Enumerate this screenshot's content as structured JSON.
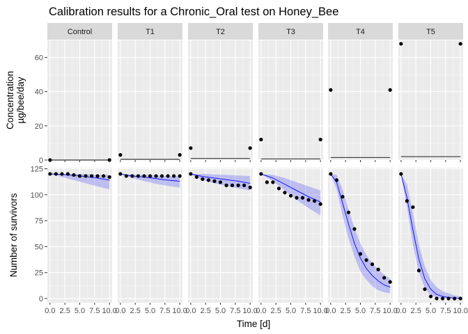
{
  "chart_data": {
    "type": "line",
    "title": "Calibration results for a Chronic_Oral test on Honey_Bee",
    "xlabel": "Time [d]",
    "x_ticks": [
      "0.0",
      "2.5",
      "5.0",
      "7.5",
      "10.0"
    ],
    "xlim": [
      0,
      10
    ],
    "grid": true,
    "facets": [
      "Control",
      "T1",
      "T2",
      "T3",
      "T4",
      "T5"
    ],
    "rows": [
      {
        "ylabel_lines": [
          "Concentration",
          "µg/bee/day"
        ],
        "ylim": [
          0,
          70
        ],
        "y_ticks": [
          0,
          20,
          40,
          60
        ],
        "series": [
          {
            "facet": "Control",
            "points": [
              [
                0,
                0
              ],
              [
                10,
                0
              ]
            ],
            "line": [
              [
                0,
                0
              ],
              [
                10,
                0
              ]
            ]
          },
          {
            "facet": "T1",
            "points": [
              [
                0,
                3
              ],
              [
                10,
                3
              ]
            ],
            "line": [
              [
                0,
                0.4
              ],
              [
                10,
                0.4
              ]
            ]
          },
          {
            "facet": "T2",
            "points": [
              [
                0,
                7
              ],
              [
                10,
                7
              ]
            ],
            "line": [
              [
                0,
                0.9
              ],
              [
                10,
                0.9
              ]
            ]
          },
          {
            "facet": "T3",
            "points": [
              [
                0,
                12
              ],
              [
                10,
                12
              ]
            ],
            "line": [
              [
                0,
                0.7
              ],
              [
                10,
                0.7
              ]
            ]
          },
          {
            "facet": "T4",
            "points": [
              [
                0,
                41
              ],
              [
                10,
                41
              ]
            ],
            "line": [
              [
                0,
                1.5
              ],
              [
                10,
                1.5
              ]
            ]
          },
          {
            "facet": "T5",
            "points": [
              [
                0,
                68
              ],
              [
                10,
                68
              ]
            ],
            "line": [
              [
                0,
                2
              ],
              [
                10,
                2
              ]
            ]
          }
        ]
      },
      {
        "ylabel_lines": [
          "Number of survivors"
        ],
        "ylim": [
          -4,
          126
        ],
        "y_ticks": [
          0,
          25,
          50,
          75,
          100,
          125
        ],
        "series": [
          {
            "facet": "Control",
            "points": [
              [
                0,
                120
              ],
              [
                1,
                120
              ],
              [
                2,
                120
              ],
              [
                3,
                120
              ],
              [
                4,
                119
              ],
              [
                5,
                118
              ],
              [
                6,
                118
              ],
              [
                7,
                118
              ],
              [
                8,
                118
              ],
              [
                9,
                118
              ],
              [
                10,
                117
              ]
            ],
            "line": [
              [
                0,
                120
              ],
              [
                2,
                119.5
              ],
              [
                4,
                118.5
              ],
              [
                6,
                117.5
              ],
              [
                8,
                116
              ],
              [
                10,
                114
              ]
            ],
            "band_low": [
              [
                0,
                120
              ],
              [
                2,
                117
              ],
              [
                4,
                114
              ],
              [
                6,
                111
              ],
              [
                8,
                108
              ],
              [
                10,
                105
              ]
            ],
            "band_high": [
              [
                0,
                120
              ],
              [
                2,
                120
              ],
              [
                4,
                120
              ],
              [
                6,
                120
              ],
              [
                8,
                119
              ],
              [
                10,
                119
              ]
            ]
          },
          {
            "facet": "T1",
            "points": [
              [
                0,
                120
              ],
              [
                1,
                118
              ],
              [
                2,
                118
              ],
              [
                3,
                118
              ],
              [
                4,
                118
              ],
              [
                5,
                118
              ],
              [
                6,
                118
              ],
              [
                7,
                118
              ],
              [
                8,
                118
              ],
              [
                9,
                118
              ],
              [
                10,
                118
              ]
            ],
            "line": [
              [
                0,
                120
              ],
              [
                2,
                118
              ],
              [
                4,
                117
              ],
              [
                6,
                115.5
              ],
              [
                8,
                114
              ],
              [
                10,
                113
              ]
            ],
            "band_low": [
              [
                0,
                120
              ],
              [
                2,
                116
              ],
              [
                4,
                113
              ],
              [
                6,
                110.5
              ],
              [
                8,
                108.5
              ],
              [
                10,
                107
              ]
            ],
            "band_high": [
              [
                0,
                120
              ],
              [
                2,
                119.5
              ],
              [
                4,
                119
              ],
              [
                6,
                118.5
              ],
              [
                8,
                118
              ],
              [
                10,
                117.5
              ]
            ]
          },
          {
            "facet": "T2",
            "points": [
              [
                0,
                120
              ],
              [
                1,
                117
              ],
              [
                2,
                115
              ],
              [
                3,
                114
              ],
              [
                4,
                113
              ],
              [
                5,
                112
              ],
              [
                6,
                109
              ],
              [
                7,
                109
              ],
              [
                8,
                109
              ],
              [
                9,
                109
              ],
              [
                10,
                107
              ]
            ],
            "line": [
              [
                0,
                120
              ],
              [
                2,
                117.5
              ],
              [
                4,
                116
              ],
              [
                6,
                114.5
              ],
              [
                8,
                113
              ],
              [
                10,
                111
              ]
            ],
            "band_low": [
              [
                0,
                120
              ],
              [
                2,
                114
              ],
              [
                4,
                111
              ],
              [
                6,
                108.5
              ],
              [
                8,
                106
              ],
              [
                10,
                104
              ]
            ],
            "band_high": [
              [
                0,
                120
              ],
              [
                2,
                120
              ],
              [
                4,
                119.5
              ],
              [
                6,
                119
              ],
              [
                8,
                118.5
              ],
              [
                10,
                118
              ]
            ]
          },
          {
            "facet": "T3",
            "points": [
              [
                0,
                120
              ],
              [
                1,
                112
              ],
              [
                2,
                112
              ],
              [
                3,
                106
              ],
              [
                4,
                102
              ],
              [
                5,
                99
              ],
              [
                6,
                97
              ],
              [
                7,
                97
              ],
              [
                8,
                95
              ],
              [
                9,
                94
              ],
              [
                10,
                91
              ]
            ],
            "line": [
              [
                0,
                120
              ],
              [
                2,
                116
              ],
              [
                4,
                110
              ],
              [
                6,
                104
              ],
              [
                8,
                98
              ],
              [
                10,
                93
              ]
            ],
            "band_low": [
              [
                0,
                120
              ],
              [
                2,
                113
              ],
              [
                4,
                104
              ],
              [
                6,
                95
              ],
              [
                8,
                87
              ],
              [
                10,
                80
              ]
            ],
            "band_high": [
              [
                0,
                120
              ],
              [
                2,
                119
              ],
              [
                4,
                116
              ],
              [
                6,
                112
              ],
              [
                8,
                108
              ],
              [
                10,
                104
              ]
            ]
          },
          {
            "facet": "T4",
            "points": [
              [
                0,
                120
              ],
              [
                1,
                114
              ],
              [
                2,
                98
              ],
              [
                3,
                83
              ],
              [
                4,
                67
              ],
              [
                5,
                43
              ],
              [
                6,
                37
              ],
              [
                7,
                33
              ],
              [
                8,
                28
              ],
              [
                9,
                20
              ],
              [
                10,
                16
              ]
            ],
            "line": [
              [
                0,
                120
              ],
              [
                1,
                112
              ],
              [
                2,
                92
              ],
              [
                3,
                72
              ],
              [
                4,
                53
              ],
              [
                5,
                39
              ],
              [
                6,
                29
              ],
              [
                7,
                22
              ],
              [
                8,
                17
              ],
              [
                9,
                13
              ],
              [
                10,
                11
              ]
            ],
            "band_low": [
              [
                0,
                120
              ],
              [
                1,
                105
              ],
              [
                2,
                80
              ],
              [
                3,
                58
              ],
              [
                4,
                40
              ],
              [
                5,
                26
              ],
              [
                6,
                18
              ],
              [
                7,
                12
              ],
              [
                8,
                8
              ],
              [
                9,
                6
              ],
              [
                10,
                5
              ]
            ],
            "band_high": [
              [
                0,
                120
              ],
              [
                1,
                119
              ],
              [
                2,
                105
              ],
              [
                3,
                86
              ],
              [
                4,
                68
              ],
              [
                5,
                53
              ],
              [
                6,
                42
              ],
              [
                7,
                34
              ],
              [
                8,
                28
              ],
              [
                9,
                23
              ],
              [
                10,
                19
              ]
            ]
          },
          {
            "facet": "T5",
            "points": [
              [
                0,
                120
              ],
              [
                1,
                94
              ],
              [
                2,
                88
              ],
              [
                3,
                27
              ],
              [
                4,
                9
              ],
              [
                5,
                2
              ],
              [
                6,
                0
              ],
              [
                7,
                0
              ],
              [
                8,
                0
              ],
              [
                9,
                0
              ],
              [
                10,
                0
              ]
            ],
            "line": [
              [
                0,
                120
              ],
              [
                1,
                97
              ],
              [
                2,
                66
              ],
              [
                3,
                38
              ],
              [
                4,
                19
              ],
              [
                5,
                9
              ],
              [
                6,
                4
              ],
              [
                7,
                2
              ],
              [
                8,
                1
              ],
              [
                9,
                0.5
              ],
              [
                10,
                0
              ]
            ],
            "band_low": [
              [
                0,
                120
              ],
              [
                1,
                88
              ],
              [
                2,
                52
              ],
              [
                3,
                25
              ],
              [
                4,
                10
              ],
              [
                5,
                3
              ],
              [
                6,
                1
              ],
              [
                7,
                0
              ],
              [
                8,
                0
              ],
              [
                9,
                0
              ],
              [
                10,
                0
              ]
            ],
            "band_high": [
              [
                0,
                120
              ],
              [
                1,
                110
              ],
              [
                2,
                82
              ],
              [
                3,
                52
              ],
              [
                4,
                31
              ],
              [
                5,
                18
              ],
              [
                6,
                11
              ],
              [
                7,
                7
              ],
              [
                8,
                5
              ],
              [
                9,
                3
              ],
              [
                10,
                2
              ]
            ]
          }
        ]
      }
    ]
  }
}
